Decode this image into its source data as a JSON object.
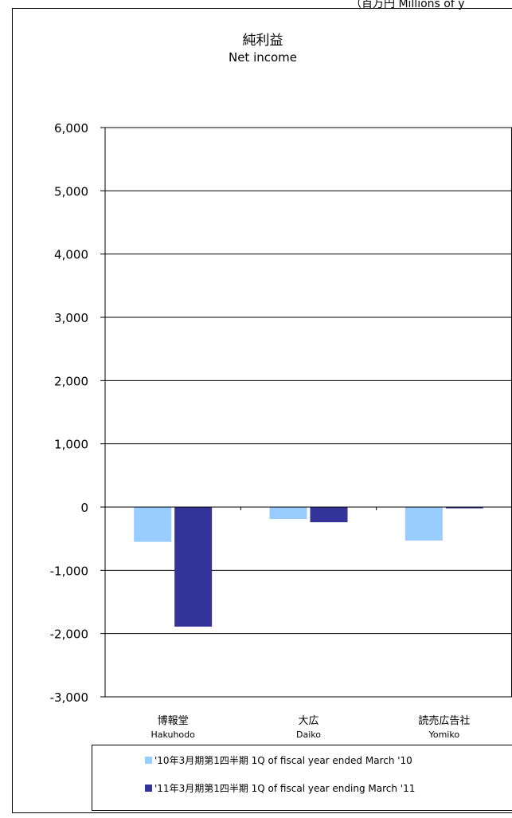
{
  "unit_label": "（百万円 Millions of y",
  "colors": {
    "series_2010": "#99ccff",
    "series_2011": "#333399",
    "frame": "#000000"
  },
  "chart_data": {
    "type": "bar",
    "title": "純利益",
    "subtitle": "Net income",
    "xlabel": "",
    "ylabel": "",
    "categories": [
      {
        "ja": "博報堂",
        "en": "Hakuhodo"
      },
      {
        "ja": "大広",
        "en": "Daiko"
      },
      {
        "ja": "読売広告社",
        "en": "Yomiko"
      }
    ],
    "series": [
      {
        "name": "'10年3月期第1四半期  1Q of fiscal year ended March '10",
        "color": "#99ccff",
        "values": [
          -550,
          -190,
          -530
        ]
      },
      {
        "name": "'11年3月期第1四半期  1Q of fiscal year ending March '11",
        "color": "#333399",
        "values": [
          -1890,
          -240,
          -20
        ]
      }
    ],
    "ylim": [
      -3000,
      6000
    ],
    "yticks": [
      6000,
      5000,
      4000,
      3000,
      2000,
      1000,
      0,
      -1000,
      -2000,
      -3000
    ],
    "ytick_labels": [
      "6,000",
      "5,000",
      "4,000",
      "3,000",
      "2,000",
      "1,000",
      "0",
      "-1,000",
      "-2,000",
      "-3,000"
    ],
    "grid": true,
    "legend_position": "bottom"
  }
}
